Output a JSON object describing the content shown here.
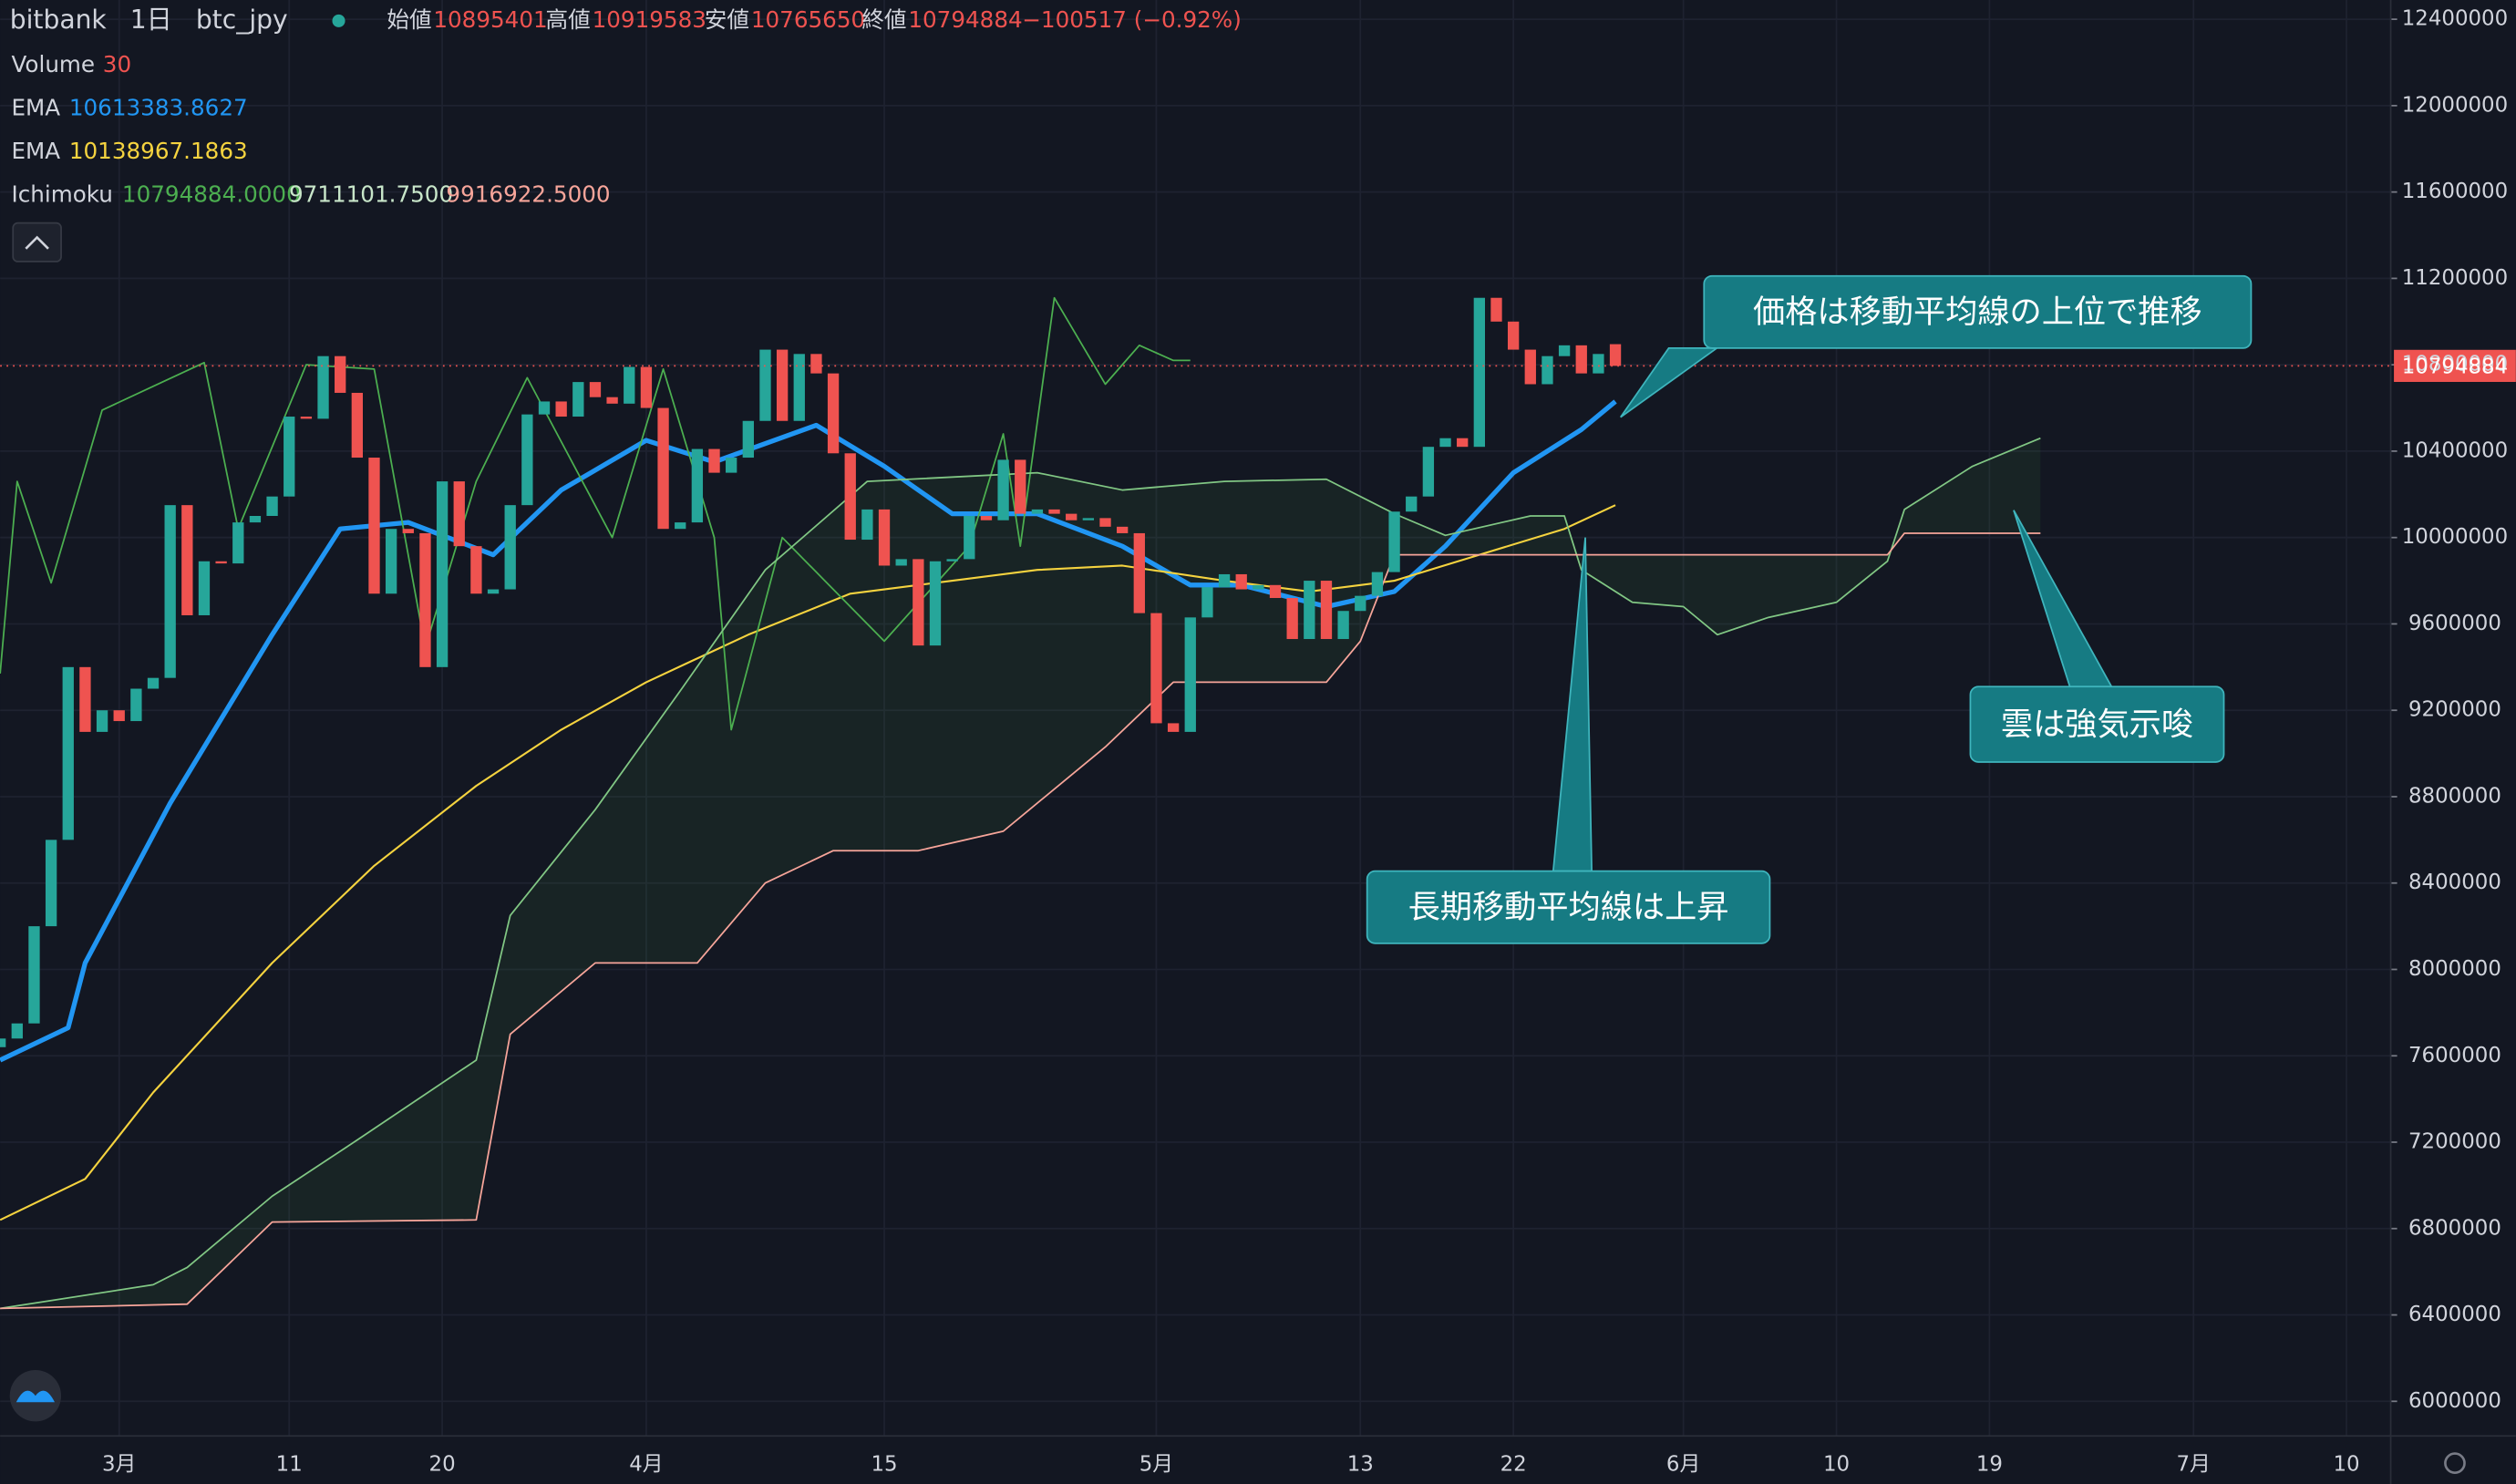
{
  "chart_data": {
    "type": "candlestick",
    "header": {
      "exchange": "bitbank",
      "interval": "1日",
      "symbol": "btc_jpy",
      "ohlc": [
        {
          "label": "始値",
          "value": "10895401"
        },
        {
          "label": "高値",
          "value": "10919583"
        },
        {
          "label": "安値",
          "value": "10765650"
        },
        {
          "label": "終値",
          "value": "10794884"
        }
      ],
      "change": "−100517 (−0.92%)"
    },
    "legend": [
      {
        "name": "Volume",
        "values": [
          "30"
        ],
        "colors": [
          "#ef5350"
        ]
      },
      {
        "name": "EMA",
        "values": [
          "10613383.8627"
        ],
        "colors": [
          "#2196f3"
        ]
      },
      {
        "name": "EMA",
        "values": [
          "10138967.1863"
        ],
        "colors": [
          "#f5d33f"
        ]
      },
      {
        "name": "Ichimoku",
        "values": [
          "10794884.0000",
          "9711101.7500",
          "9916922.5000"
        ],
        "colors": [
          "#4caf50",
          "#c8e6c9",
          "#f7a59a"
        ]
      }
    ],
    "up_color": "#26a69a",
    "down_color": "#ef5350",
    "x": [
      -7,
      -6,
      -5,
      -4,
      -3,
      -2,
      -1,
      0,
      1,
      2,
      3,
      4,
      5,
      6,
      7,
      8,
      9,
      10,
      11,
      12,
      13,
      14,
      15,
      16,
      17,
      18,
      19,
      20,
      21,
      22,
      23,
      24,
      25,
      26,
      27,
      28,
      29,
      30,
      31,
      32,
      33,
      34,
      35,
      36,
      37,
      38,
      39,
      40,
      41,
      42,
      43,
      44,
      45,
      46,
      47,
      48,
      49,
      50,
      51,
      52,
      53,
      54,
      55,
      56,
      57,
      58,
      59,
      60,
      61,
      62,
      63,
      64,
      65,
      66,
      67,
      68,
      69,
      70,
      71,
      72,
      73,
      74,
      75,
      76,
      77,
      78,
      79,
      80,
      81,
      82,
      83,
      84,
      85,
      86,
      87,
      88
    ],
    "open": [
      7640000,
      7680000,
      7750000,
      8200000,
      8600000,
      9400000,
      9100000,
      9200000,
      9150000,
      9300000,
      9350000,
      10150000,
      9640000,
      9890000,
      9880000,
      10070000,
      10100000,
      10190000,
      10560000,
      10550000,
      10840000,
      10670000,
      10370000,
      9740000,
      10040000,
      10020000,
      9400000,
      10260000,
      9960000,
      9740000,
      9760000,
      10150000,
      10570000,
      10630000,
      10560000,
      10720000,
      10650000,
      10620000,
      10790000,
      10600000,
      10040000,
      10070000,
      10410000,
      10300000,
      10370000,
      10540000,
      10870000,
      10540000,
      10850000,
      10760000,
      10390000,
      9990000,
      10130000,
      9870000,
      9900000,
      9500000,
      9890000,
      9900000,
      10100000,
      10080000,
      10360000,
      10110000,
      10130000,
      10110000,
      10080000,
      10090000,
      10050000,
      10020000,
      9650000,
      9140000,
      9100000,
      9630000,
      9770000,
      9830000,
      9760000,
      9780000,
      9720000,
      9530000,
      9800000,
      9530000,
      9660000,
      9730000,
      9840000,
      10120000,
      10190000,
      10420000,
      10460000,
      10420000,
      11110000,
      11000000,
      10870000,
      10710000,
      10840000,
      10890000,
      10760000,
      10895401
    ],
    "close": [
      7680000,
      7750000,
      8200000,
      8600000,
      9400000,
      9100000,
      9200000,
      9150000,
      9300000,
      9350000,
      10150000,
      9640000,
      9890000,
      9880000,
      10070000,
      10100000,
      10190000,
      10560000,
      10550000,
      10840000,
      10670000,
      10370000,
      9740000,
      10040000,
      10020000,
      9400000,
      10260000,
      9960000,
      9740000,
      9760000,
      10150000,
      10570000,
      10630000,
      10560000,
      10720000,
      10650000,
      10620000,
      10790000,
      10600000,
      10040000,
      10070000,
      10410000,
      10300000,
      10370000,
      10540000,
      10870000,
      10540000,
      10850000,
      10760000,
      10390000,
      9990000,
      10130000,
      9870000,
      9900000,
      9500000,
      9890000,
      9900000,
      10100000,
      10080000,
      10360000,
      10110000,
      10130000,
      10110000,
      10080000,
      10090000,
      10050000,
      10020000,
      9650000,
      9140000,
      9100000,
      9630000,
      9770000,
      9830000,
      9760000,
      9780000,
      9720000,
      9530000,
      9800000,
      9530000,
      9660000,
      9730000,
      9840000,
      10120000,
      10190000,
      10420000,
      10460000,
      10420000,
      11110000,
      11000000,
      10870000,
      10710000,
      10840000,
      10890000,
      10760000,
      10850000,
      10794884
    ],
    "lines": [
      {
        "color": "#2196f3",
        "width": 3,
        "x": [
          -7,
          -3,
          -2,
          3,
          9,
          13,
          17,
          22,
          26,
          31,
          35,
          41,
          45,
          49,
          54,
          59,
          63,
          66,
          71,
          75,
          78,
          82,
          86,
          88
        ],
        "values": [
          7580000,
          7730000,
          8030000,
          8770000,
          9550000,
          10040000,
          10070000,
          9920000,
          10220000,
          10450000,
          10350000,
          10520000,
          10330000,
          10110000,
          10110000,
          9960000,
          9780000,
          9780000,
          9680000,
          9750000,
          9960000,
          10300000,
          10500000,
          10630000
        ]
      },
      {
        "color": "#f5d33f",
        "width": 1.2,
        "x": [
          -7,
          -2,
          2,
          9,
          15,
          21,
          26,
          31,
          37,
          43,
          49,
          54,
          59,
          65,
          70,
          75,
          80,
          85,
          88
        ],
        "values": [
          6840000,
          7030000,
          7430000,
          8030000,
          8480000,
          8850000,
          9110000,
          9330000,
          9550000,
          9740000,
          9800000,
          9850000,
          9870000,
          9800000,
          9750000,
          9800000,
          9920000,
          10040000,
          10150000
        ]
      },
      {
        "color": "#4caf50",
        "width": 1,
        "x": [
          -7,
          -6,
          -4,
          -1,
          2,
          5,
          7,
          11,
          15,
          18,
          21,
          24,
          29,
          32,
          35,
          36,
          39,
          45,
          50,
          52,
          53,
          55,
          58,
          60,
          62,
          63
        ],
        "values": [
          9370000,
          10260000,
          9790000,
          10590000,
          10700000,
          10810000,
          10040000,
          10800000,
          10780000,
          9490000,
          10260000,
          10740000,
          10000000,
          10780000,
          10000000,
          9110000,
          10000000,
          9520000,
          9960000,
          10480000,
          9960000,
          11110000,
          10710000,
          10890000,
          10820000,
          10820000
        ]
      },
      {
        "color": "#81c784",
        "width": 1,
        "x": [
          -7,
          2,
          4,
          9,
          14,
          21,
          23,
          28,
          33,
          38,
          44,
          54,
          59,
          65,
          71,
          75,
          78,
          83,
          85,
          86,
          89,
          92,
          94,
          97,
          101,
          104,
          105,
          109,
          113
        ],
        "values": [
          6430000,
          6540000,
          6620000,
          6950000,
          7210000,
          7580000,
          8250000,
          8740000,
          9290000,
          9850000,
          10260000,
          10300000,
          10220000,
          10260000,
          10270000,
          10110000,
          10010000,
          10100000,
          10100000,
          9850000,
          9700000,
          9680000,
          9550000,
          9630000,
          9700000,
          9890000,
          10130000,
          10330000,
          10460000
        ]
      },
      {
        "color": "#f7a59a",
        "width": 1,
        "x": [
          -7,
          4,
          9,
          21,
          23,
          28,
          34,
          38,
          42,
          47,
          52,
          58,
          62,
          71,
          73,
          75,
          86,
          104,
          105,
          113
        ],
        "values": [
          6430000,
          6450000,
          6830000,
          6840000,
          7700000,
          8030000,
          8030000,
          8400000,
          8550000,
          8550000,
          8640000,
          9030000,
          9330000,
          9330000,
          9520000,
          9920000,
          9920000,
          9920000,
          10020000,
          10020000
        ]
      }
    ],
    "current_price": 10794884,
    "xlim": [
      -7,
      133.6
    ],
    "xticks": [
      {
        "value": 0,
        "label": "3月"
      },
      {
        "value": 10,
        "label": "11"
      },
      {
        "value": 19,
        "label": "20"
      },
      {
        "value": 31,
        "label": "4月"
      },
      {
        "value": 45,
        "label": "15"
      },
      {
        "value": 61,
        "label": "5月"
      },
      {
        "value": 73,
        "label": "13"
      },
      {
        "value": 82,
        "label": "22"
      },
      {
        "value": 92,
        "label": "6月"
      },
      {
        "value": 101,
        "label": "10"
      },
      {
        "value": 110,
        "label": "19"
      },
      {
        "value": 122,
        "label": "7月"
      },
      {
        "value": 131,
        "label": "10"
      }
    ],
    "ylim": [
      5840000,
      12400000
    ],
    "yticks": [
      6000000,
      6400000,
      6800000,
      7200000,
      7600000,
      8000000,
      8400000,
      8800000,
      9200000,
      9600000,
      10000000,
      10400000,
      10800000,
      11200000,
      11600000,
      12000000,
      12400000
    ],
    "grid": true,
    "annotations": [
      "価格は移動平均線の上位で推移",
      "長期移動平均線は上昇",
      "雲は強気示唆"
    ]
  }
}
